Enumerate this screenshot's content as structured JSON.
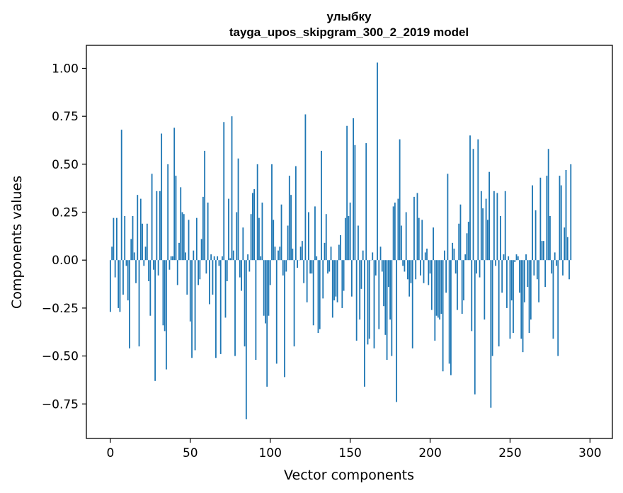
{
  "chart_data": {
    "type": "bar",
    "title": "улыбку",
    "subtitle": "tayga_upos_skipgram_300_2_2019 model",
    "xlabel": "Vector components",
    "ylabel": "Components values",
    "xlim": [
      -15,
      314
    ],
    "ylim": [
      -0.93,
      1.12
    ],
    "xticks": [
      0,
      50,
      100,
      150,
      200,
      250,
      300
    ],
    "xtick_labels": [
      "0",
      "50",
      "100",
      "150",
      "200",
      "250",
      "300"
    ],
    "yticks": [
      1.0,
      0.75,
      0.5,
      0.25,
      0.0,
      -0.25,
      -0.5,
      -0.75
    ],
    "ytick_labels": [
      "1.00",
      "0.75",
      "0.50",
      "0.25",
      "0.00",
      "−0.25",
      "−0.50",
      "−0.75"
    ],
    "bar_color": "#1f77b4",
    "grid": false,
    "legend": "none",
    "values": [
      -0.27,
      0.07,
      0.22,
      -0.09,
      0.22,
      -0.25,
      -0.27,
      0.68,
      -0.18,
      0.23,
      -0.03,
      -0.21,
      -0.46,
      0.11,
      0.23,
      0.04,
      -0.12,
      0.34,
      -0.45,
      0.32,
      0.19,
      -0.03,
      0.07,
      0.19,
      -0.11,
      -0.29,
      0.45,
      -0.05,
      -0.63,
      0.36,
      -0.08,
      0.36,
      0.66,
      -0.34,
      -0.37,
      -0.57,
      0.5,
      -0.05,
      0.02,
      0.02,
      0.69,
      0.44,
      -0.13,
      0.09,
      0.38,
      0.25,
      0.24,
      0.04,
      -0.18,
      0.21,
      -0.32,
      -0.51,
      0.05,
      -0.47,
      0.22,
      -0.13,
      -0.1,
      0.11,
      0.33,
      0.57,
      -0.07,
      0.3,
      -0.23,
      0.03,
      -0.18,
      0.02,
      -0.51,
      0.02,
      -0.03,
      -0.49,
      0.02,
      0.72,
      -0.3,
      -0.11,
      0.32,
      0.01,
      0.75,
      0.05,
      -0.5,
      0.25,
      0.53,
      -0.09,
      -0.16,
      0.17,
      -0.45,
      -0.83,
      0.03,
      -0.06,
      0.24,
      0.35,
      0.37,
      -0.52,
      0.5,
      0.22,
      0.02,
      0.3,
      -0.29,
      -0.33,
      -0.66,
      -0.29,
      -0.13,
      0.5,
      0.21,
      0.07,
      -0.54,
      0.05,
      0.07,
      0.29,
      -0.08,
      -0.61,
      -0.06,
      0.18,
      0.44,
      0.34,
      0.06,
      -0.45,
      0.49,
      -0.04,
      0.0,
      0.07,
      0.1,
      -0.12,
      0.76,
      -0.22,
      0.25,
      -0.07,
      -0.07,
      -0.34,
      0.28,
      0.02,
      -0.38,
      -0.36,
      0.57,
      -0.2,
      0.09,
      0.24,
      -0.07,
      -0.06,
      0.07,
      -0.3,
      -0.21,
      -0.19,
      -0.22,
      0.08,
      0.13,
      -0.25,
      -0.16,
      0.22,
      0.7,
      0.23,
      0.3,
      -0.19,
      0.74,
      0.6,
      -0.42,
      0.18,
      -0.31,
      -0.15,
      0.05,
      -0.66,
      0.61,
      -0.44,
      -0.41,
      0.0,
      0.04,
      -0.46,
      -0.08,
      1.03,
      -0.36,
      0.07,
      -0.06,
      -0.24,
      -0.39,
      -0.52,
      -0.14,
      -0.31,
      -0.5,
      0.28,
      0.3,
      -0.74,
      0.32,
      0.63,
      0.18,
      -0.03,
      -0.06,
      0.25,
      -0.1,
      -0.19,
      -0.12,
      -0.46,
      0.33,
      -0.1,
      0.35,
      0.22,
      -0.08,
      0.21,
      -0.12,
      0.04,
      0.06,
      -0.13,
      -0.07,
      -0.26,
      0.17,
      -0.42,
      -0.29,
      -0.3,
      -0.31,
      -0.28,
      -0.58,
      0.05,
      -0.17,
      0.45,
      -0.54,
      -0.6,
      0.09,
      0.06,
      -0.07,
      -0.26,
      0.19,
      0.29,
      -0.28,
      -0.21,
      0.03,
      0.14,
      0.2,
      0.65,
      -0.37,
      0.58,
      -0.7,
      -0.07,
      0.63,
      -0.09,
      0.36,
      0.27,
      -0.31,
      0.32,
      0.21,
      0.46,
      -0.77,
      -0.5,
      0.36,
      -0.03,
      0.35,
      -0.45,
      0.23,
      -0.17,
      0.03,
      0.36,
      -0.25,
      0.02,
      -0.41,
      -0.21,
      -0.38,
      -0.01,
      0.03,
      0.02,
      -0.17,
      -0.41,
      -0.48,
      -0.22,
      0.03,
      -0.14,
      -0.38,
      -0.31,
      0.39,
      -0.08,
      0.26,
      -0.1,
      -0.22,
      0.43,
      0.1,
      0.1,
      -0.14,
      0.44,
      0.58,
      0.23,
      -0.07,
      -0.41,
      0.04,
      -0.03,
      -0.5,
      0.44,
      0.39,
      -0.08,
      0.17,
      0.47,
      0.12,
      -0.1,
      0.5
    ]
  }
}
